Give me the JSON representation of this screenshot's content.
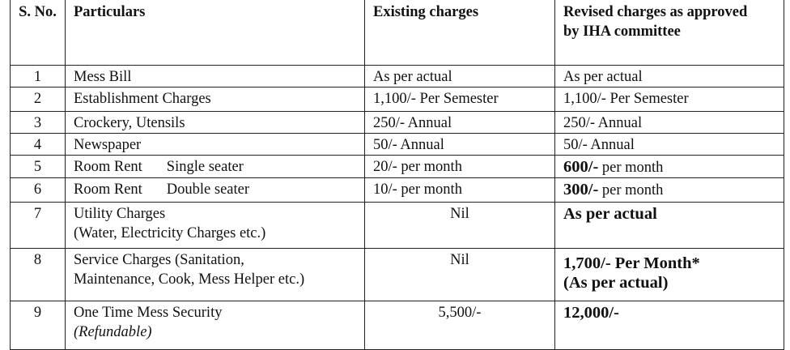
{
  "table": {
    "header": [
      "S. No.",
      "Particulars",
      "Existing charges",
      "Revised charges as approved by IHA committee"
    ],
    "rows": [
      [
        [
          "1"
        ],
        [
          "Mess Bill"
        ],
        [
          "As per actual"
        ],
        [
          "As per actual"
        ]
      ],
      [
        [
          "2"
        ],
        [
          "Establishment Charges"
        ],
        [
          "1,100/- Per Semester"
        ],
        [
          "1,100/- Per Semester"
        ]
      ],
      [
        [
          "3"
        ],
        [
          "Crockery, Utensils"
        ],
        [
          "250/- Annual"
        ],
        [
          "250/- Annual"
        ]
      ],
      [
        [
          "4"
        ],
        [
          "Newspaper"
        ],
        [
          "50/- Annual"
        ],
        [
          "50/- Annual"
        ]
      ],
      [
        [
          "5"
        ],
        [
          "Room Rent",
          "Single seater"
        ],
        [
          "20/- per month"
        ],
        [
          "600/-",
          "per month"
        ]
      ],
      [
        [
          "6"
        ],
        [
          "Room Rent",
          "Double seater"
        ],
        [
          "10/- per month"
        ],
        [
          "300/-",
          "per month"
        ]
      ],
      [
        [
          "7"
        ],
        [
          "Utility Charges",
          "(Water, Electricity Charges etc.)"
        ],
        [
          "Nil"
        ],
        [
          "As per actual"
        ]
      ],
      [
        [
          "8"
        ],
        [
          "Service Charges (Sanitation,",
          "Maintenance, Cook, Mess Helper etc.)"
        ],
        [
          "Nil"
        ],
        [
          "1,700/- Per Month*",
          "(As per actual)"
        ]
      ],
      [
        [
          "9"
        ],
        [
          "One Time Mess Security",
          "(Refundable)"
        ],
        [
          "5,500/-"
        ],
        [
          "12,000/-"
        ]
      ]
    ]
  }
}
